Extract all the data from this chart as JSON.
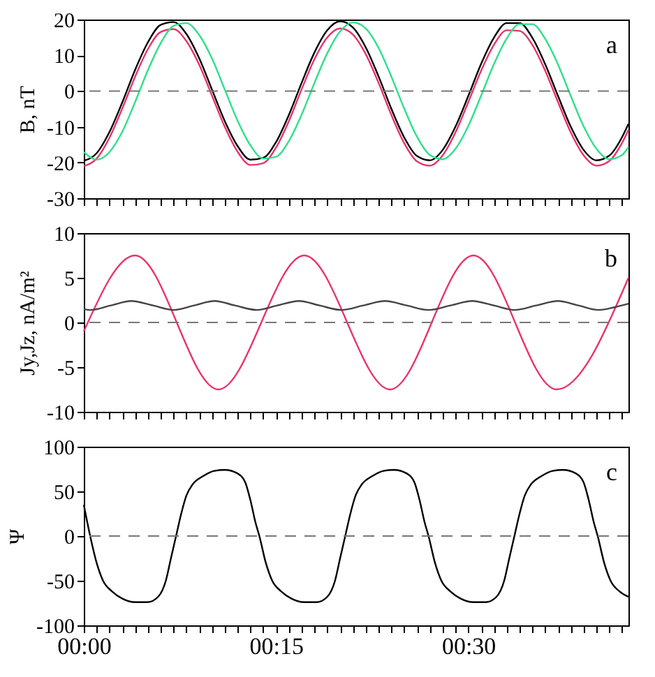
{
  "chart_data": [
    {
      "type": "line",
      "ylabel": "B, nT",
      "annotations": [
        "a"
      ],
      "xlim": [
        0,
        0.7083
      ],
      "ylim": [
        -30,
        20
      ],
      "yticks": [
        -30,
        -20,
        -10,
        0,
        10,
        20
      ],
      "tick_labels": "y",
      "xticks": [
        {
          "value": 0,
          "label": null
        },
        {
          "value": 0.0167,
          "label": null
        },
        {
          "value": 0.0333,
          "label": null
        },
        {
          "value": 0.05,
          "label": null
        },
        {
          "value": 0.0667,
          "label": null
        },
        {
          "value": 0.0833,
          "label": null
        },
        {
          "value": 0.1,
          "label": null
        },
        {
          "value": 0.1167,
          "label": null
        },
        {
          "value": 0.1333,
          "label": null
        },
        {
          "value": 0.15,
          "label": null
        },
        {
          "value": 0.1667,
          "label": null
        },
        {
          "value": 0.1833,
          "label": null
        },
        {
          "value": 0.2,
          "label": null
        },
        {
          "value": 0.2167,
          "label": null
        },
        {
          "value": 0.2333,
          "label": null
        },
        {
          "value": 0.25,
          "label": null
        },
        {
          "value": 0.2667,
          "label": null
        },
        {
          "value": 0.2833,
          "label": null
        },
        {
          "value": 0.3,
          "label": null
        },
        {
          "value": 0.3167,
          "label": null
        },
        {
          "value": 0.3333,
          "label": null
        },
        {
          "value": 0.35,
          "label": null
        },
        {
          "value": 0.3667,
          "label": null
        },
        {
          "value": 0.3833,
          "label": null
        },
        {
          "value": 0.4,
          "label": null
        },
        {
          "value": 0.4167,
          "label": null
        },
        {
          "value": 0.4333,
          "label": null
        },
        {
          "value": 0.45,
          "label": null
        },
        {
          "value": 0.4667,
          "label": null
        },
        {
          "value": 0.4833,
          "label": null
        },
        {
          "value": 0.5,
          "label": null
        },
        {
          "value": 0.5167,
          "label": null
        },
        {
          "value": 0.5333,
          "label": null
        },
        {
          "value": 0.55,
          "label": null
        },
        {
          "value": 0.5667,
          "label": null
        },
        {
          "value": 0.5833,
          "label": null
        },
        {
          "value": 0.6,
          "label": null
        },
        {
          "value": 0.6167,
          "label": null
        },
        {
          "value": 0.6333,
          "label": null
        },
        {
          "value": 0.65,
          "label": null
        },
        {
          "value": 0.6667,
          "label": null
        },
        {
          "value": 0.6833,
          "label": null
        },
        {
          "value": 0.7,
          "label": null
        }
      ],
      "x": [
        0,
        0.0167,
        0.0333,
        0.05,
        0.0667,
        0.0833,
        0.1,
        0.1167,
        0.1333,
        0.15,
        0.1667,
        0.1833,
        0.2,
        0.2167,
        0.2333,
        0.25,
        0.2667,
        0.2833,
        0.3,
        0.3167,
        0.3333,
        0.35,
        0.3667,
        0.3833,
        0.4,
        0.4167,
        0.4333,
        0.45,
        0.4667,
        0.4833,
        0.5,
        0.5167,
        0.5333,
        0.55,
        0.5667,
        0.5833,
        0.6,
        0.6167,
        0.6333,
        0.65,
        0.6667,
        0.6833,
        0.7,
        0.7083
      ],
      "series": [
        {
          "color": "#000000",
          "values": [
            -19.5,
            -17.4,
            -11.5,
            -3.2,
            5.9,
            13.6,
            18.5,
            19.3,
            16.0,
            9.2,
            0.4,
            -8.4,
            -15.4,
            -19.2,
            -18.7,
            -14.3,
            -6.7,
            2.3,
            10.8,
            17.0,
            19.5,
            17.8,
            12.2,
            4.1,
            -5.0,
            -13.0,
            -18.2,
            -19.4,
            -16.5,
            -10.0,
            -1.4,
            7.6,
            14.9,
            19.0,
            19.0,
            14.9,
            7.5,
            -1.4,
            -10.0,
            -16.5,
            -19.4,
            -18.1,
            -12.9,
            -9.2
          ]
        },
        {
          "color": "#e8336b",
          "values": [
            -21.0,
            -18.9,
            -13.1,
            -4.9,
            4.0,
            11.7,
            16.5,
            17.3,
            14.0,
            7.4,
            -1.3,
            -10.0,
            -17.0,
            -20.7,
            -20.2,
            -15.8,
            -8.4,
            0.5,
            8.9,
            15.0,
            17.5,
            15.8,
            10.3,
            2.3,
            -6.7,
            -14.6,
            -19.7,
            -20.9,
            -18.0,
            -11.6,
            -3.1,
            5.7,
            12.9,
            17.0,
            16.8,
            12.9,
            5.7,
            -3.1,
            -11.6,
            -18.0,
            -20.9,
            -19.6,
            -14.5,
            -10.9
          ]
        },
        {
          "color": "#2ee08a",
          "values": [
            -17.1,
            -19.2,
            -17.1,
            -11.4,
            -3.1,
            5.8,
            13.4,
            18.2,
            19.0,
            15.7,
            9.1,
            0.4,
            -8.3,
            -15.2,
            -18.9,
            -18.4,
            -14.0,
            -6.6,
            2.3,
            10.6,
            16.7,
            19.2,
            17.5,
            12.1,
            4.0,
            -4.9,
            -12.8,
            -17.9,
            -19.1,
            -16.2,
            -9.8,
            -1.3,
            7.5,
            14.7,
            18.7,
            18.7,
            14.6,
            7.4,
            -1.4,
            -9.9,
            -16.2,
            -19.1,
            -17.9,
            -15.7
          ]
        }
      ],
      "ref_lines": [
        {
          "axis": "y",
          "value": 0,
          "color": "#777777",
          "line_style": "dashed"
        }
      ]
    },
    {
      "type": "line",
      "ylabel": "Jy,Jz, nA/m²",
      "annotations": [
        "b"
      ],
      "xlim": [
        0,
        0.7083
      ],
      "ylim": [
        -10,
        10
      ],
      "yticks": [
        -10,
        -5,
        0,
        5,
        10
      ],
      "tick_labels": "y",
      "xticks": [
        {
          "value": 0,
          "label": null
        },
        {
          "value": 0.0167,
          "label": null
        },
        {
          "value": 0.0333,
          "label": null
        },
        {
          "value": 0.05,
          "label": null
        },
        {
          "value": 0.0667,
          "label": null
        },
        {
          "value": 0.0833,
          "label": null
        },
        {
          "value": 0.1,
          "label": null
        },
        {
          "value": 0.1167,
          "label": null
        },
        {
          "value": 0.1333,
          "label": null
        },
        {
          "value": 0.15,
          "label": null
        },
        {
          "value": 0.1667,
          "label": null
        },
        {
          "value": 0.1833,
          "label": null
        },
        {
          "value": 0.2,
          "label": null
        },
        {
          "value": 0.2167,
          "label": null
        },
        {
          "value": 0.2333,
          "label": null
        },
        {
          "value": 0.25,
          "label": null
        },
        {
          "value": 0.2667,
          "label": null
        },
        {
          "value": 0.2833,
          "label": null
        },
        {
          "value": 0.3,
          "label": null
        },
        {
          "value": 0.3167,
          "label": null
        },
        {
          "value": 0.3333,
          "label": null
        },
        {
          "value": 0.35,
          "label": null
        },
        {
          "value": 0.3667,
          "label": null
        },
        {
          "value": 0.3833,
          "label": null
        },
        {
          "value": 0.4,
          "label": null
        },
        {
          "value": 0.4167,
          "label": null
        },
        {
          "value": 0.4333,
          "label": null
        },
        {
          "value": 0.45,
          "label": null
        },
        {
          "value": 0.4667,
          "label": null
        },
        {
          "value": 0.4833,
          "label": null
        },
        {
          "value": 0.5,
          "label": null
        },
        {
          "value": 0.5167,
          "label": null
        },
        {
          "value": 0.5333,
          "label": null
        },
        {
          "value": 0.55,
          "label": null
        },
        {
          "value": 0.5667,
          "label": null
        },
        {
          "value": 0.5833,
          "label": null
        },
        {
          "value": 0.6,
          "label": null
        },
        {
          "value": 0.6167,
          "label": null
        },
        {
          "value": 0.6333,
          "label": null
        },
        {
          "value": 0.65,
          "label": null
        },
        {
          "value": 0.6667,
          "label": null
        },
        {
          "value": 0.6833,
          "label": null
        },
        {
          "value": 0.7,
          "label": null
        }
      ],
      "series": [
        {
          "color": "#e8336b",
          "x": [
            0,
            0.0667,
            0.175,
            0.2867,
            0.3983,
            0.5067,
            0.615,
            0.7083
          ],
          "values": [
            -1,
            7.5,
            -7.5,
            7.5,
            -7.5,
            7.5,
            -7.5,
            5
          ]
        },
        {
          "color": "#444444",
          "x": [
            0,
            0.0083,
            0.035,
            0.0617,
            0.09,
            0.1167,
            0.1433,
            0.17,
            0.1967,
            0.225,
            0.2517,
            0.28,
            0.3067,
            0.335,
            0.3633,
            0.3917,
            0.42,
            0.4483,
            0.4767,
            0.505,
            0.5333,
            0.56,
            0.5883,
            0.6167,
            0.6433,
            0.67,
            0.69,
            0.7083
          ],
          "values": [
            1.5,
            1.4,
            1.9,
            2.4,
            1.9,
            1.4,
            1.9,
            2.4,
            1.9,
            1.4,
            1.9,
            2.4,
            1.9,
            1.4,
            1.9,
            2.4,
            1.9,
            1.4,
            1.9,
            2.4,
            1.9,
            1.4,
            1.9,
            2.4,
            1.9,
            1.4,
            1.7,
            2.1
          ]
        }
      ],
      "ref_lines": [
        {
          "axis": "y",
          "value": 0,
          "color": "#777777",
          "line_style": "dashed"
        }
      ]
    },
    {
      "type": "line",
      "ylabel": "Ψ",
      "annotations": [
        "c"
      ],
      "xlim": [
        0,
        0.7083
      ],
      "ylim": [
        -100,
        100
      ],
      "yticks": [
        -100,
        -50,
        0,
        50,
        100
      ],
      "xticks": [
        {
          "value": 0,
          "label": "00:00"
        },
        {
          "value": 0.0167,
          "label": null
        },
        {
          "value": 0.0333,
          "label": null
        },
        {
          "value": 0.05,
          "label": null
        },
        {
          "value": 0.0667,
          "label": null
        },
        {
          "value": 0.0833,
          "label": null
        },
        {
          "value": 0.1,
          "label": null
        },
        {
          "value": 0.1167,
          "label": null
        },
        {
          "value": 0.1333,
          "label": null
        },
        {
          "value": 0.15,
          "label": null
        },
        {
          "value": 0.1667,
          "label": null
        },
        {
          "value": 0.1833,
          "label": null
        },
        {
          "value": 0.2,
          "label": null
        },
        {
          "value": 0.2167,
          "label": null
        },
        {
          "value": 0.2333,
          "label": null
        },
        {
          "value": 0.25,
          "label": "00:15"
        },
        {
          "value": 0.2667,
          "label": null
        },
        {
          "value": 0.2833,
          "label": null
        },
        {
          "value": 0.3,
          "label": null
        },
        {
          "value": 0.3167,
          "label": null
        },
        {
          "value": 0.3333,
          "label": null
        },
        {
          "value": 0.35,
          "label": null
        },
        {
          "value": 0.3667,
          "label": null
        },
        {
          "value": 0.3833,
          "label": null
        },
        {
          "value": 0.4,
          "label": null
        },
        {
          "value": 0.4167,
          "label": null
        },
        {
          "value": 0.4333,
          "label": null
        },
        {
          "value": 0.45,
          "label": null
        },
        {
          "value": 0.4667,
          "label": null
        },
        {
          "value": 0.4833,
          "label": null
        },
        {
          "value": 0.5,
          "label": "00:30"
        },
        {
          "value": 0.5167,
          "label": null
        },
        {
          "value": 0.5333,
          "label": null
        },
        {
          "value": 0.55,
          "label": null
        },
        {
          "value": 0.5667,
          "label": null
        },
        {
          "value": 0.5833,
          "label": null
        },
        {
          "value": 0.6,
          "label": null
        },
        {
          "value": 0.6167,
          "label": null
        },
        {
          "value": 0.6333,
          "label": null
        },
        {
          "value": 0.65,
          "label": null
        },
        {
          "value": 0.6667,
          "label": null
        },
        {
          "value": 0.6833,
          "label": null
        },
        {
          "value": 0.7,
          "label": null
        }
      ],
      "series": [
        {
          "color": "#000000",
          "x": [
            0,
            0.0083,
            0.0167,
            0.025,
            0.0367,
            0.05,
            0.0667,
            0.0833,
            0.0967,
            0.1067,
            0.1133,
            0.12,
            0.1267,
            0.1333,
            0.1417,
            0.155,
            0.17,
            0.1833,
            0.2,
            0.21,
            0.2167,
            0.2233,
            0.2283,
            0.2367,
            0.245,
            0.2567,
            0.27,
            0.2867,
            0.3033,
            0.3167,
            0.3267,
            0.3333,
            0.34,
            0.3467,
            0.3533,
            0.3617,
            0.375,
            0.39,
            0.4033,
            0.42,
            0.43,
            0.4367,
            0.4433,
            0.4483,
            0.4567,
            0.465,
            0.4767,
            0.49,
            0.5067,
            0.5233,
            0.5367,
            0.5467,
            0.5533,
            0.56,
            0.5667,
            0.5733,
            0.5817,
            0.595,
            0.61,
            0.6233,
            0.64,
            0.65,
            0.6567,
            0.6633,
            0.6683,
            0.6767,
            0.685,
            0.6967,
            0.7083
          ],
          "values": [
            35,
            0,
            -30,
            -50,
            -62,
            -70,
            -74,
            -74,
            -68,
            -50,
            -25,
            0,
            25,
            45,
            58,
            67,
            73,
            74,
            70,
            60,
            40,
            15,
            0,
            -30,
            -50,
            -62,
            -70,
            -74,
            -74,
            -68,
            -50,
            -25,
            0,
            25,
            45,
            58,
            67,
            73,
            74,
            70,
            60,
            40,
            15,
            0,
            -30,
            -50,
            -62,
            -70,
            -74,
            -74,
            -68,
            -50,
            -25,
            0,
            25,
            45,
            58,
            67,
            73,
            74,
            70,
            60,
            40,
            15,
            0,
            -30,
            -50,
            -62,
            -68
          ]
        }
      ],
      "ref_lines": [
        {
          "axis": "y",
          "value": 0,
          "color": "#777777",
          "line_style": "dashed"
        }
      ]
    }
  ]
}
